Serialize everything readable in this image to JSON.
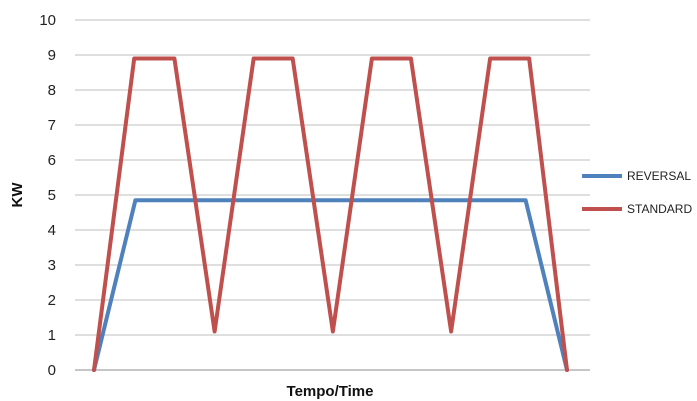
{
  "chart_data": {
    "type": "line",
    "title": "",
    "xlabel": "Tempo/Time",
    "ylabel": "KW",
    "ylim": [
      0,
      10
    ],
    "yticks": [
      0,
      1,
      2,
      3,
      4,
      5,
      6,
      7,
      8,
      9,
      10
    ],
    "xlim": [
      0,
      20
    ],
    "grid": true,
    "legend_position": "right",
    "series": [
      {
        "name": "REVERSAL",
        "color": "#4f81bd",
        "points": [
          [
            0,
            0
          ],
          [
            1.75,
            4.85
          ],
          [
            18.25,
            4.85
          ],
          [
            20,
            0
          ]
        ]
      },
      {
        "name": "STANDARD",
        "color": "#c0504d",
        "points": [
          [
            0,
            0
          ],
          [
            1.7,
            8.9
          ],
          [
            3.4,
            8.9
          ],
          [
            5.1,
            1.1
          ],
          [
            6.75,
            8.9
          ],
          [
            8.4,
            8.9
          ],
          [
            10.1,
            1.1
          ],
          [
            11.75,
            8.9
          ],
          [
            13.4,
            8.9
          ],
          [
            15.1,
            1.1
          ],
          [
            16.75,
            8.9
          ],
          [
            18.4,
            8.9
          ],
          [
            20,
            0
          ]
        ]
      }
    ]
  }
}
